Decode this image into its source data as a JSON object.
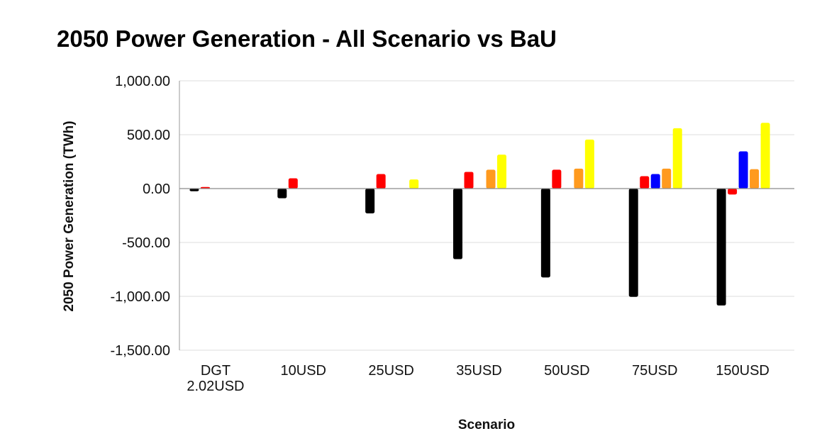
{
  "chart_data": {
    "type": "bar",
    "title": "2050 Power Generation - All Scenario vs BaU",
    "xlabel": "Scenario",
    "ylabel": "2050 Power Generation (TWh)",
    "ylim": [
      -1500,
      1000
    ],
    "yticks": [
      1000,
      500,
      0,
      -500,
      -1000,
      -1500
    ],
    "ytick_labels": [
      "1,000.00",
      "500.00",
      "0.00",
      "-500.00",
      "-1,000.00",
      "-1,500.00"
    ],
    "grid": true,
    "legend": "none",
    "categories": [
      "DGT\n2.02USD",
      "10USD",
      "25USD",
      "35USD",
      "50USD",
      "75USD",
      "150USD"
    ],
    "series": [
      {
        "color": "#000000",
        "values": [
          -25,
          -90,
          -230,
          -655,
          -825,
          -1005,
          -1085
        ]
      },
      {
        "color": "#ff0000",
        "values": [
          15,
          95,
          135,
          155,
          175,
          115,
          -55
        ]
      },
      {
        "color": "#0000ff",
        "values": [
          0,
          0,
          0,
          0,
          0,
          135,
          345
        ]
      },
      {
        "color": "#ff9a1e",
        "values": [
          0,
          0,
          0,
          175,
          185,
          185,
          180
        ]
      },
      {
        "color": "#ffff00",
        "values": [
          0,
          0,
          85,
          315,
          455,
          560,
          610
        ]
      }
    ]
  }
}
